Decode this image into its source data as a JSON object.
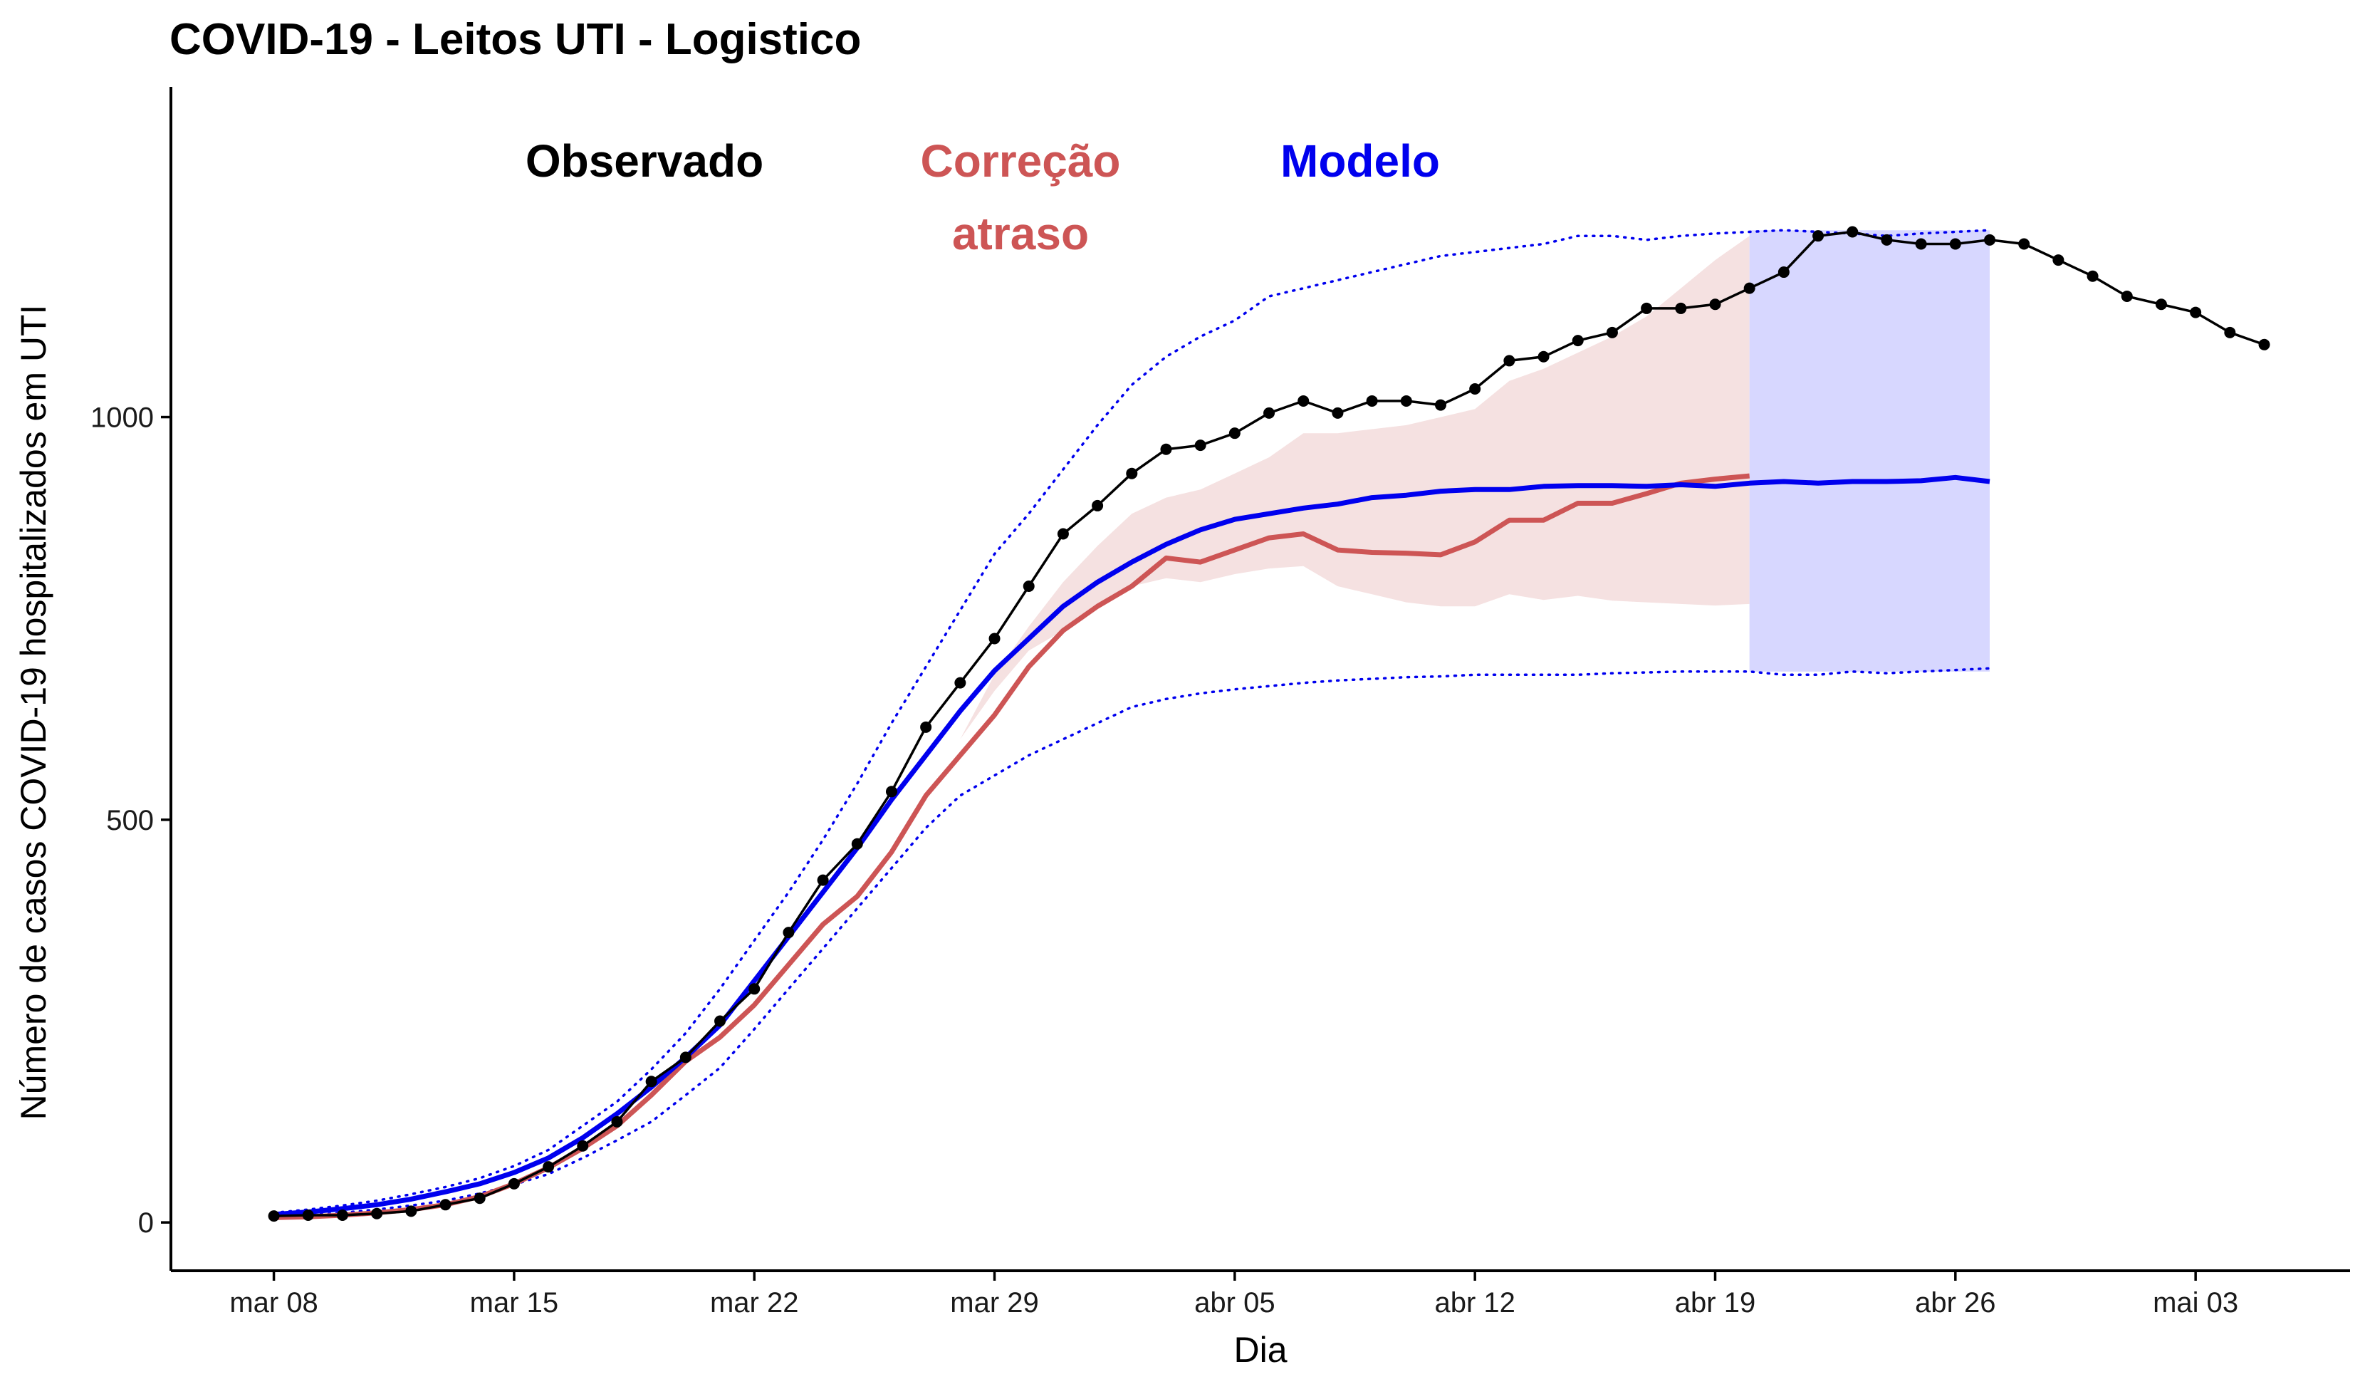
{
  "chart_data": {
    "type": "line",
    "title": "COVID-19 - Leitos UTI - Logistico",
    "xlabel": "Dia",
    "ylabel": "Número de casos COVID-19 hospitalizados em UTI",
    "x_start": "2020-03-08",
    "xlim": [
      -3,
      60.5
    ],
    "ylim": [
      -60,
      1410
    ],
    "x_ticks": [
      {
        "x": 0,
        "label": "mar 08"
      },
      {
        "x": 7,
        "label": "mar 15"
      },
      {
        "x": 14,
        "label": "mar 22"
      },
      {
        "x": 21,
        "label": "mar 29"
      },
      {
        "x": 28,
        "label": "abr 05"
      },
      {
        "x": 35,
        "label": "abr 12"
      },
      {
        "x": 42,
        "label": "abr 19"
      },
      {
        "x": 49,
        "label": "abr 26"
      },
      {
        "x": 56,
        "label": "mai 03"
      }
    ],
    "y_ticks": [
      {
        "y": 0,
        "label": "0"
      },
      {
        "y": 500,
        "label": "500"
      },
      {
        "y": 1000,
        "label": "1000"
      }
    ],
    "annotations": [
      {
        "text": "Observado",
        "color": "#000000"
      },
      {
        "text": "Correção",
        "color": "#cd5555"
      },
      {
        "text": "atraso",
        "color": "#cd5555"
      },
      {
        "text": "Modelo",
        "color": "#0000ee"
      }
    ],
    "series": [
      {
        "name": "Observado",
        "color": "#000000",
        "x": [
          0,
          1,
          2,
          3,
          4,
          5,
          6,
          7,
          8,
          9,
          10,
          11,
          12,
          13,
          14,
          15,
          16,
          17,
          18,
          19,
          20,
          21,
          22,
          23,
          24,
          25,
          26,
          27,
          28,
          29,
          30,
          31,
          32,
          33,
          34,
          35,
          36,
          37,
          38,
          39,
          40,
          41,
          42,
          43,
          44,
          45,
          46,
          47,
          48,
          49,
          50,
          51,
          52,
          53,
          54,
          55,
          56,
          57,
          58
        ],
        "values": [
          8,
          9,
          9,
          11,
          14,
          22,
          30,
          48,
          69,
          95,
          125,
          175,
          205,
          250,
          290,
          360,
          425,
          470,
          535,
          615,
          670,
          725,
          790,
          855,
          890,
          930,
          960,
          965,
          980,
          1005,
          1020,
          1005,
          1020,
          1020,
          1015,
          1035,
          1070,
          1075,
          1095,
          1105,
          1135,
          1135,
          1140,
          1160,
          1180,
          1225,
          1230,
          1220,
          1215,
          1215,
          1220,
          1215,
          1195,
          1175,
          1150,
          1140,
          1130,
          1105,
          1090
        ]
      },
      {
        "name": "Correção atraso",
        "color": "#cd5555",
        "x": [
          0,
          1,
          2,
          3,
          4,
          5,
          6,
          7,
          8,
          9,
          10,
          11,
          12,
          13,
          14,
          15,
          16,
          17,
          18,
          19,
          20,
          21,
          22,
          23,
          24,
          25,
          26,
          27,
          28,
          29,
          30,
          31,
          32,
          33,
          34,
          35,
          36,
          37,
          38,
          39,
          40,
          41,
          42,
          43
        ],
        "values": [
          6,
          7,
          9,
          12,
          16,
          22,
          32,
          48,
          68,
          92,
          120,
          158,
          200,
          230,
          270,
          320,
          370,
          405,
          460,
          530,
          580,
          630,
          690,
          735,
          765,
          790,
          825,
          820,
          835,
          850,
          855,
          835,
          832,
          831,
          829,
          845,
          872,
          872,
          893,
          893,
          905,
          918,
          923,
          927
        ],
        "band_low": [
          6,
          7,
          9,
          12,
          16,
          22,
          32,
          48,
          68,
          92,
          120,
          158,
          200,
          230,
          270,
          320,
          370,
          405,
          460,
          530,
          600,
          660,
          710,
          735,
          765,
          790,
          800,
          795,
          805,
          812,
          815,
          790,
          780,
          770,
          765,
          765,
          780,
          773,
          778,
          772,
          770,
          768,
          766,
          768
        ],
        "band_high": [
          6,
          7,
          9,
          12,
          16,
          22,
          32,
          48,
          68,
          92,
          120,
          158,
          200,
          230,
          270,
          320,
          370,
          405,
          460,
          530,
          600,
          680,
          740,
          795,
          840,
          880,
          900,
          910,
          930,
          950,
          980,
          980,
          985,
          990,
          1000,
          1010,
          1045,
          1060,
          1080,
          1100,
          1125,
          1160,
          1195,
          1225
        ]
      },
      {
        "name": "Modelo",
        "color": "#0000ee",
        "x": [
          0,
          1,
          2,
          3,
          4,
          5,
          6,
          7,
          8,
          9,
          10,
          11,
          12,
          13,
          14,
          15,
          16,
          17,
          18,
          19,
          20,
          21,
          22,
          23,
          24,
          25,
          26,
          27,
          28,
          29,
          30,
          31,
          32,
          33,
          34,
          35,
          36,
          37,
          38,
          39,
          40,
          41,
          42,
          43,
          44,
          45,
          46,
          47,
          48,
          49,
          50
        ],
        "values": [
          10,
          13,
          17,
          22,
          29,
          38,
          48,
          62,
          80,
          105,
          135,
          168,
          205,
          245,
          300,
          355,
          410,
          465,
          525,
          580,
          635,
          685,
          725,
          765,
          795,
          820,
          842,
          860,
          873,
          880,
          887,
          892,
          900,
          903,
          908,
          910,
          910,
          914,
          915,
          915,
          914,
          916,
          914,
          918,
          920,
          918,
          920,
          920,
          921,
          925,
          920
        ],
        "band_low": [
          7,
          9,
          12,
          16,
          21,
          27,
          36,
          47,
          60,
          80,
          102,
          125,
          158,
          192,
          240,
          290,
          340,
          390,
          440,
          490,
          530,
          555,
          580,
          600,
          620,
          640,
          650,
          657,
          662,
          666,
          670,
          673,
          675,
          677,
          678,
          680,
          680,
          680,
          680,
          682,
          683,
          684,
          684,
          684,
          680,
          680,
          684,
          682,
          684,
          686,
          688
        ],
        "band_high": [
          12,
          16,
          21,
          27,
          35,
          44,
          55,
          70,
          90,
          120,
          150,
          190,
          235,
          290,
          350,
          410,
          475,
          545,
          620,
          690,
          760,
          830,
          880,
          935,
          990,
          1040,
          1075,
          1100,
          1120,
          1150,
          1160,
          1170,
          1180,
          1190,
          1200,
          1205,
          1210,
          1215,
          1225,
          1225,
          1220,
          1225,
          1228,
          1230,
          1232,
          1230,
          1228,
          1225,
          1228,
          1230,
          1232
        ]
      }
    ],
    "forecast_band": {
      "color": "#d7d7ff",
      "x_range": [
        43,
        50
      ],
      "y_low": 684,
      "y_high": 1232
    }
  }
}
